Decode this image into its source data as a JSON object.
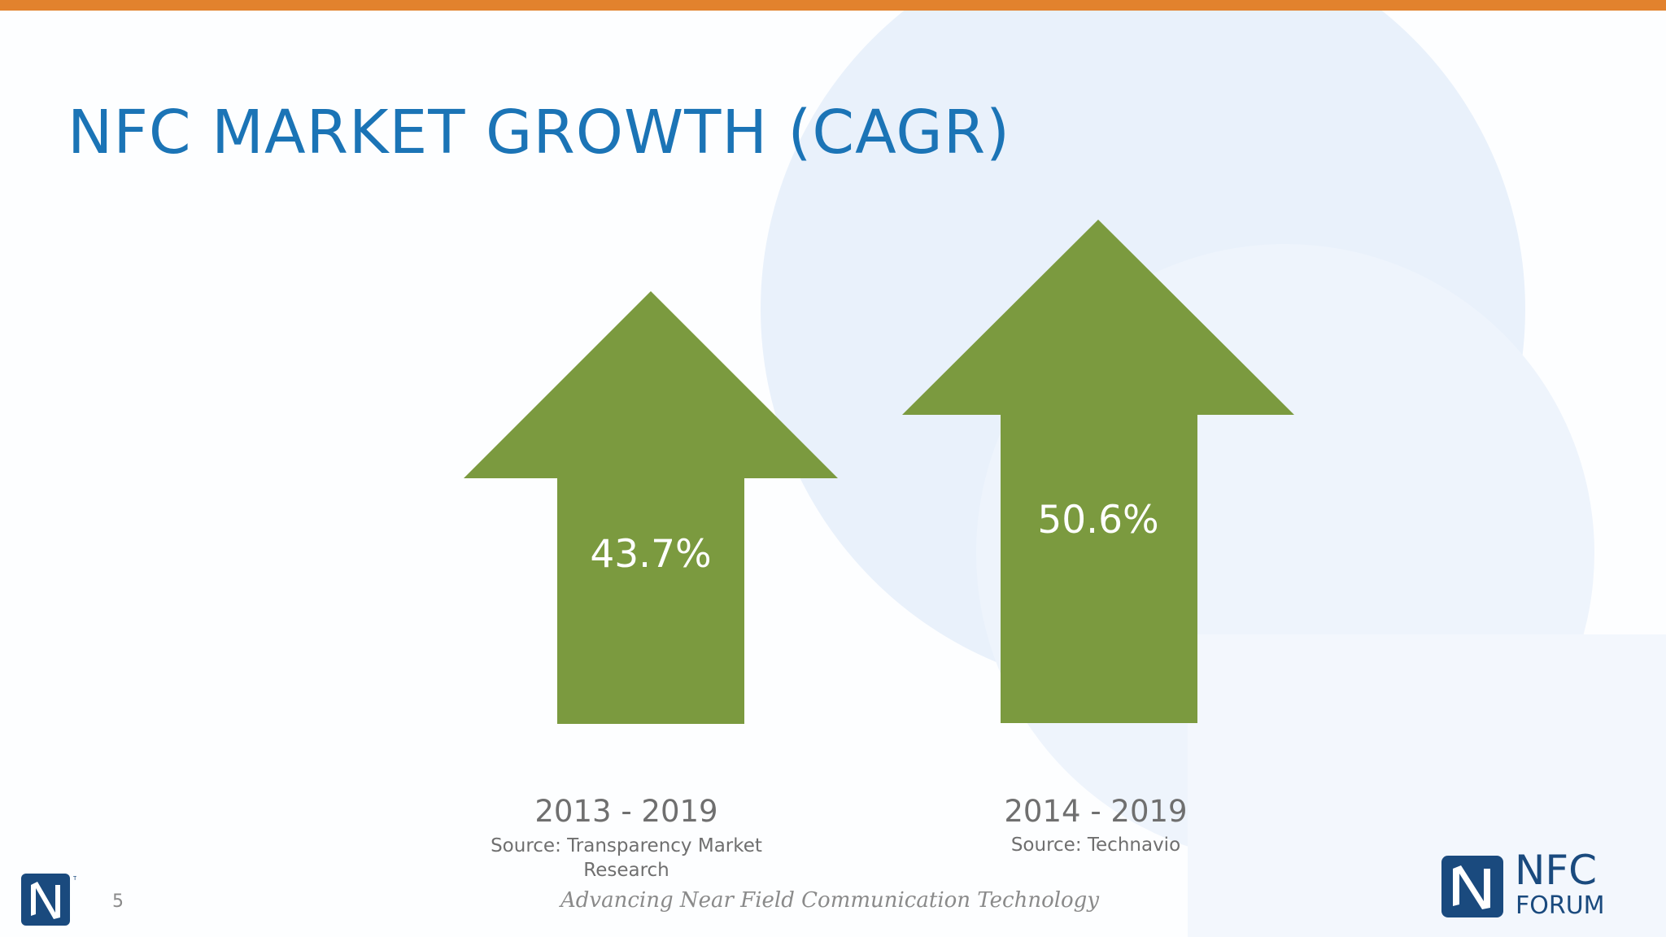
{
  "slide": {
    "title": "NFC MARKET GROWTH (CAGR)",
    "slide_number": "5",
    "footer_tagline": "Advancing Near Field Communication Technology"
  },
  "arrows": [
    {
      "value": "43.7%",
      "period": "2013 - 2019",
      "source_line1": "Source: Transparency Market",
      "source_line2": "Research"
    },
    {
      "value": "50.6%",
      "period": "2014 - 2019",
      "source_line1": "Source: Technavio",
      "source_line2": ""
    }
  ],
  "logo": {
    "line1": "NFC",
    "line2": "FORUM",
    "trademark": "TM",
    "icon": "nfc-n-mark-icon"
  },
  "colors": {
    "accent_bar": "#e2822d",
    "title": "#1b74b6",
    "arrow_fill": "#7b9a3f",
    "text_gray": "#6f6f6f",
    "logo_navy": "#1a4a7e"
  }
}
